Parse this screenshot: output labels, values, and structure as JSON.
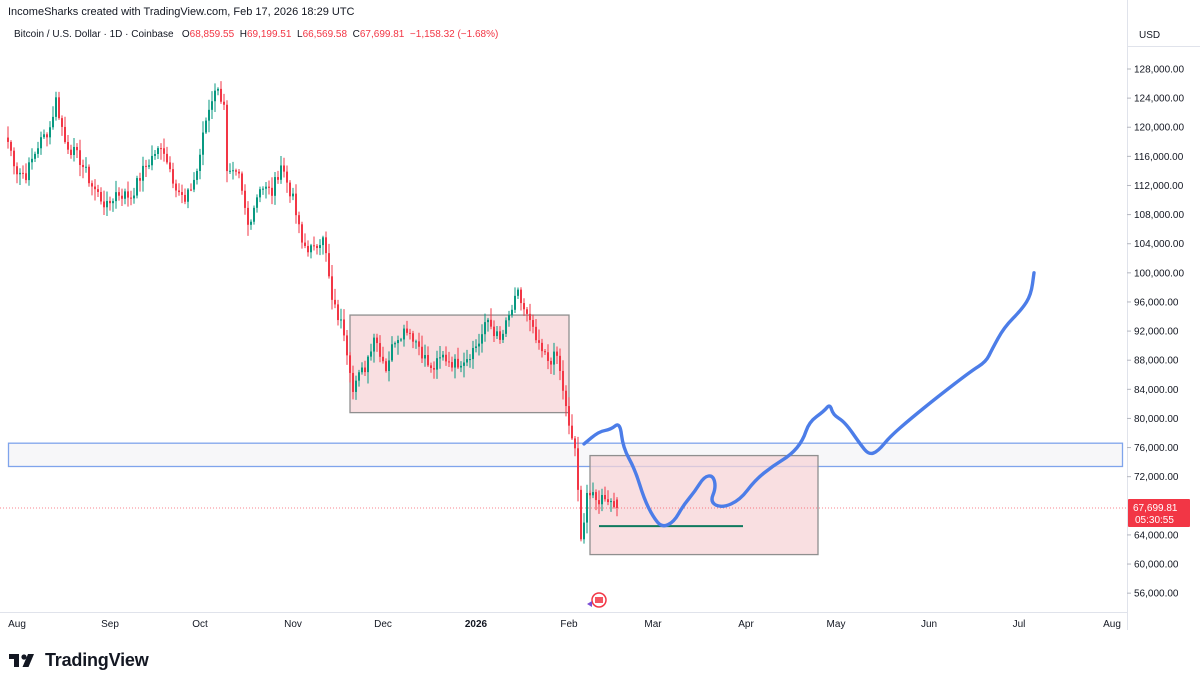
{
  "header": {
    "attribution": "IncomeSharks created with TradingView.com, Feb 17, 2026 18:29 UTC"
  },
  "symbol_info": {
    "name": "Bitcoin / U.S. Dollar · 1D · Coinbase",
    "open_label": "O",
    "open": "68,859.55",
    "high_label": "H",
    "high": "69,199.51",
    "low_label": "L",
    "low": "66,569.58",
    "close_label": "C",
    "close": "67,699.81",
    "change": "−1,158.32 (−1.68%)"
  },
  "axis": {
    "currency": "USD",
    "price_ticks": [
      "128,000.00",
      "124,000.00",
      "120,000.00",
      "116,000.00",
      "112,000.00",
      "108,000.00",
      "104,000.00",
      "100,000.00",
      "96,000.00",
      "92,000.00",
      "88,000.00",
      "84,000.00",
      "80,000.00",
      "76,000.00",
      "72,000.00",
      "64,000.00",
      "60,000.00",
      "56,000.00"
    ],
    "month_ticks": [
      "Aug",
      "Sep",
      "Oct",
      "Nov",
      "Dec",
      "2026",
      "Feb",
      "Mar",
      "Apr",
      "May",
      "Jun",
      "Jul",
      "Aug"
    ]
  },
  "price_label": {
    "value": "67,699.81",
    "countdown": "05:30:55"
  },
  "footer": {
    "brand": "TradingView"
  },
  "colors": {
    "up": "#089981",
    "down": "#f23645",
    "projection": "#4c7de8",
    "zone_fill": "#f7d4d7",
    "zone_border": "#8f8f8f",
    "band_border": "#7fa4ec",
    "support": "#0f7a5e"
  },
  "chart_data": {
    "type": "candlestick",
    "title": "Bitcoin / U.S. Dollar · 1D · Coinbase",
    "x_range": [
      "2025-07-29",
      "2026-08-03"
    ],
    "y_range": [
      53600,
      131700
    ],
    "scale": "linear",
    "grid": false,
    "price_path": [
      {
        "date": "2025-07-29",
        "close": 118000
      },
      {
        "date": "2025-08-01",
        "close": 114000
      },
      {
        "date": "2025-08-04",
        "close": 113500
      },
      {
        "date": "2025-08-08",
        "close": 117500
      },
      {
        "date": "2025-08-12",
        "close": 120000
      },
      {
        "date": "2025-08-14",
        "close": 123800
      },
      {
        "date": "2025-08-17",
        "close": 118000
      },
      {
        "date": "2025-08-22",
        "close": 115500
      },
      {
        "date": "2025-08-26",
        "close": 112000
      },
      {
        "date": "2025-08-31",
        "close": 109000
      },
      {
        "date": "2025-09-03",
        "close": 111000
      },
      {
        "date": "2025-09-08",
        "close": 110500
      },
      {
        "date": "2025-09-12",
        "close": 114000
      },
      {
        "date": "2025-09-16",
        "close": 116500
      },
      {
        "date": "2025-09-19",
        "close": 117000
      },
      {
        "date": "2025-09-22",
        "close": 113000
      },
      {
        "date": "2025-09-26",
        "close": 109500
      },
      {
        "date": "2025-09-30",
        "close": 114000
      },
      {
        "date": "2025-10-03",
        "close": 121000
      },
      {
        "date": "2025-10-06",
        "close": 125500
      },
      {
        "date": "2025-10-09",
        "close": 123500
      },
      {
        "date": "2025-10-10",
        "close": 113500
      },
      {
        "date": "2025-10-14",
        "close": 113000
      },
      {
        "date": "2025-10-17",
        "close": 106500
      },
      {
        "date": "2025-10-21",
        "close": 112000
      },
      {
        "date": "2025-10-25",
        "close": 111000
      },
      {
        "date": "2025-10-28",
        "close": 115000
      },
      {
        "date": "2025-11-01",
        "close": 110000
      },
      {
        "date": "2025-11-04",
        "close": 104000
      },
      {
        "date": "2025-11-08",
        "close": 103000
      },
      {
        "date": "2025-11-11",
        "close": 105500
      },
      {
        "date": "2025-11-14",
        "close": 96000
      },
      {
        "date": "2025-11-18",
        "close": 92000
      },
      {
        "date": "2025-11-21",
        "close": 84500
      },
      {
        "date": "2025-11-25",
        "close": 87000
      },
      {
        "date": "2025-11-28",
        "close": 91500
      },
      {
        "date": "2025-12-02",
        "close": 87000
      },
      {
        "date": "2025-12-05",
        "close": 91000
      },
      {
        "date": "2025-12-09",
        "close": 92500
      },
      {
        "date": "2025-12-13",
        "close": 90000
      },
      {
        "date": "2025-12-17",
        "close": 86500
      },
      {
        "date": "2025-12-21",
        "close": 88500
      },
      {
        "date": "2025-12-25",
        "close": 87500
      },
      {
        "date": "2025-12-29",
        "close": 88500
      },
      {
        "date": "2026-01-02",
        "close": 90500
      },
      {
        "date": "2026-01-05",
        "close": 93500
      },
      {
        "date": "2026-01-09",
        "close": 90500
      },
      {
        "date": "2026-01-13",
        "close": 95000
      },
      {
        "date": "2026-01-15",
        "close": 97000
      },
      {
        "date": "2026-01-19",
        "close": 93000
      },
      {
        "date": "2026-01-22",
        "close": 89500
      },
      {
        "date": "2026-01-25",
        "close": 88000
      },
      {
        "date": "2026-01-28",
        "close": 88500
      },
      {
        "date": "2026-01-30",
        "close": 84000
      },
      {
        "date": "2026-02-01",
        "close": 78500
      },
      {
        "date": "2026-02-03",
        "close": 76000
      },
      {
        "date": "2026-02-05",
        "close": 63000
      },
      {
        "date": "2026-02-07",
        "close": 70000
      },
      {
        "date": "2026-02-10",
        "close": 68500
      },
      {
        "date": "2026-02-13",
        "close": 69500
      },
      {
        "date": "2026-02-17",
        "close": 67700
      }
    ],
    "zones": [
      {
        "name": "range-1",
        "from": "2025-11-20",
        "to": "2026-02-01",
        "low": 80800,
        "high": 94200
      },
      {
        "name": "range-2",
        "from": "2026-02-08",
        "to": "2026-04-25",
        "low": 61300,
        "high": 74900
      }
    ],
    "resistance_band": {
      "low": 73400,
      "high": 76600
    },
    "support_line": {
      "from": "2026-02-11",
      "to": "2026-03-31",
      "price": 65200
    },
    "projection": [
      {
        "date": "2026-02-06",
        "price": 76500
      },
      {
        "date": "2026-02-11",
        "price": 78200
      },
      {
        "date": "2026-02-15",
        "price": 78500
      },
      {
        "date": "2026-02-18",
        "price": 79500
      },
      {
        "date": "2026-02-19",
        "price": 76000
      },
      {
        "date": "2026-02-23",
        "price": 73000
      },
      {
        "date": "2026-02-26",
        "price": 69000
      },
      {
        "date": "2026-03-01",
        "price": 66500
      },
      {
        "date": "2026-03-04",
        "price": 65000
      },
      {
        "date": "2026-03-08",
        "price": 65800
      },
      {
        "date": "2026-03-11",
        "price": 68000
      },
      {
        "date": "2026-03-15",
        "price": 70000
      },
      {
        "date": "2026-03-18",
        "price": 72000
      },
      {
        "date": "2026-03-21",
        "price": 72200
      },
      {
        "date": "2026-03-22",
        "price": 70500
      },
      {
        "date": "2026-03-20",
        "price": 68500
      },
      {
        "date": "2026-03-24",
        "price": 67700
      },
      {
        "date": "2026-03-30",
        "price": 68800
      },
      {
        "date": "2026-04-04",
        "price": 71500
      },
      {
        "date": "2026-04-10",
        "price": 73500
      },
      {
        "date": "2026-04-16",
        "price": 75000
      },
      {
        "date": "2026-04-20",
        "price": 77000
      },
      {
        "date": "2026-04-22",
        "price": 79500
      },
      {
        "date": "2026-04-27",
        "price": 81000
      },
      {
        "date": "2026-04-29",
        "price": 82000
      },
      {
        "date": "2026-04-30",
        "price": 80500
      },
      {
        "date": "2026-05-04",
        "price": 79500
      },
      {
        "date": "2026-05-09",
        "price": 76500
      },
      {
        "date": "2026-05-12",
        "price": 75000
      },
      {
        "date": "2026-05-15",
        "price": 75500
      },
      {
        "date": "2026-05-19",
        "price": 77500
      },
      {
        "date": "2026-05-26",
        "price": 80000
      },
      {
        "date": "2026-06-04",
        "price": 83000
      },
      {
        "date": "2026-06-15",
        "price": 86500
      },
      {
        "date": "2026-06-20",
        "price": 87800
      },
      {
        "date": "2026-06-22",
        "price": 89500
      },
      {
        "date": "2026-06-26",
        "price": 92500
      },
      {
        "date": "2026-07-02",
        "price": 95000
      },
      {
        "date": "2026-07-05",
        "price": 97000
      },
      {
        "date": "2026-07-06",
        "price": 100000
      }
    ]
  }
}
